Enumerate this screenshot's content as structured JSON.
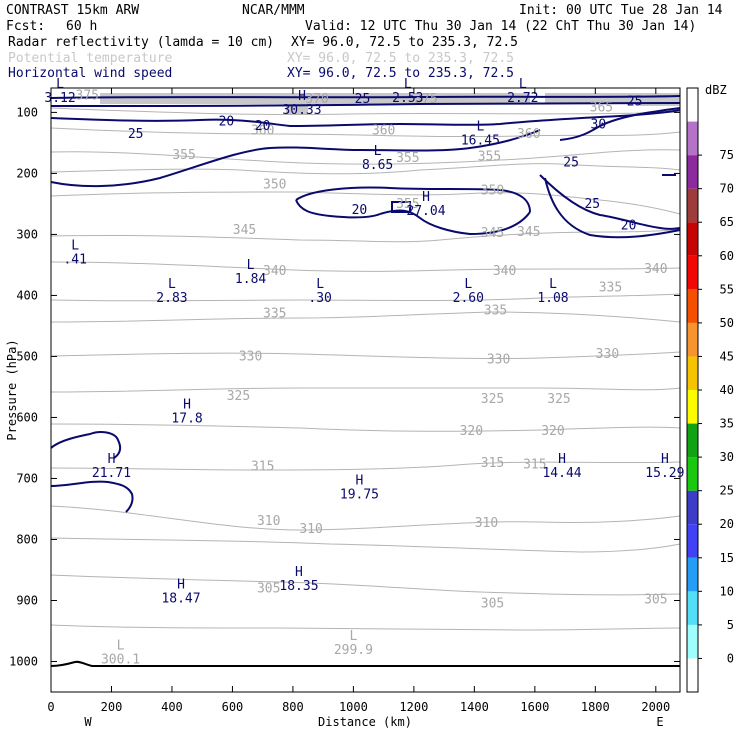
{
  "header": {
    "model": "CONTRAST 15km ARW",
    "institution": "NCAR/MMM",
    "init": "Init: 00 UTC Tue 28 Jan 14",
    "fcst_label": "Fcst:",
    "fcst_value": "60 h",
    "valid": "Valid: 12 UTC Thu 30 Jan 14 (22 ChT Thu 30 Jan 14)",
    "fields": [
      {
        "name": "Radar reflectivity (lamda = 10 cm)",
        "xy": "XY=  96.0, 72.5 to 235.3, 72.5",
        "color": "#000000"
      },
      {
        "name": "Potential temperature",
        "xy": "XY=  96.0, 72.5 to 235.3, 72.5",
        "color": "#c8c8c8"
      },
      {
        "name": "Horizontal wind speed",
        "xy": "XY=  96.0, 72.5 to 235.3, 72.5",
        "color": "#0a0a6e"
      }
    ]
  },
  "chart_data": {
    "type": "contour-cross-section",
    "xlabel": "Distance (km)",
    "ylabel": "Pressure (hPa)",
    "x_ticks": [
      0,
      200,
      400,
      600,
      800,
      1000,
      1200,
      1400,
      1600,
      1800,
      2000
    ],
    "xlim": [
      0,
      2080
    ],
    "y_ticks": [
      100,
      200,
      300,
      400,
      500,
      600,
      700,
      800,
      900,
      1000
    ],
    "ylim": [
      1050,
      60
    ],
    "x_end_labels": {
      "left": "W",
      "right": "E"
    },
    "colorbar": {
      "unit": "dBZ",
      "levels": [
        "0",
        "5",
        "10",
        "15",
        "20",
        "25",
        "30",
        "35",
        "40",
        "45",
        "50",
        "55",
        "60",
        "65",
        "70",
        "75"
      ],
      "colors": [
        "#ffffff",
        "#9ffdfd",
        "#54ddf7",
        "#259df5",
        "#4141f5",
        "#3c3cc8",
        "#19c80f",
        "#11a311",
        "#fcfb00",
        "#f5c300",
        "#f7942f",
        "#f55000",
        "#f30606",
        "#c60404",
        "#9e3c3c",
        "#8b2b9e",
        "#b473c8",
        "#ffffff"
      ]
    },
    "theta_labels": [
      {
        "x": 120,
        "p": 72,
        "text": "375"
      },
      {
        "x": 880,
        "p": 78,
        "text": "370"
      },
      {
        "x": 1240,
        "p": 78,
        "text": "375"
      },
      {
        "x": 1820,
        "p": 92,
        "text": "365"
      },
      {
        "x": 700,
        "p": 130,
        "text": "360"
      },
      {
        "x": 1100,
        "p": 130,
        "text": "360"
      },
      {
        "x": 1580,
        "p": 135,
        "text": "360"
      },
      {
        "x": 440,
        "p": 170,
        "text": "355"
      },
      {
        "x": 1180,
        "p": 175,
        "text": "355"
      },
      {
        "x": 1450,
        "p": 172,
        "text": "355"
      },
      {
        "x": 740,
        "p": 218,
        "text": "350"
      },
      {
        "x": 1460,
        "p": 228,
        "text": "350"
      },
      {
        "x": 1180,
        "p": 250,
        "text": "355"
      },
      {
        "x": 640,
        "p": 293,
        "text": "345"
      },
      {
        "x": 1460,
        "p": 298,
        "text": "345"
      },
      {
        "x": 1580,
        "p": 296,
        "text": "345"
      },
      {
        "x": 740,
        "p": 360,
        "text": "340"
      },
      {
        "x": 1500,
        "p": 360,
        "text": "340"
      },
      {
        "x": 2000,
        "p": 357,
        "text": "340"
      },
      {
        "x": 1850,
        "p": 387,
        "text": "335"
      },
      {
        "x": 740,
        "p": 430,
        "text": "335"
      },
      {
        "x": 1470,
        "p": 425,
        "text": "335"
      },
      {
        "x": 660,
        "p": 500,
        "text": "330"
      },
      {
        "x": 1480,
        "p": 505,
        "text": "330"
      },
      {
        "x": 1840,
        "p": 496,
        "text": "330"
      },
      {
        "x": 620,
        "p": 565,
        "text": "325"
      },
      {
        "x": 1460,
        "p": 570,
        "text": "325"
      },
      {
        "x": 1680,
        "p": 570,
        "text": "325"
      },
      {
        "x": 1390,
        "p": 622,
        "text": "320"
      },
      {
        "x": 1660,
        "p": 622,
        "text": "320"
      },
      {
        "x": 700,
        "p": 680,
        "text": "315"
      },
      {
        "x": 1460,
        "p": 675,
        "text": "315"
      },
      {
        "x": 1600,
        "p": 677,
        "text": "315"
      },
      {
        "x": 720,
        "p": 770,
        "text": "310"
      },
      {
        "x": 860,
        "p": 783,
        "text": "310"
      },
      {
        "x": 1440,
        "p": 773,
        "text": "310"
      },
      {
        "x": 720,
        "p": 880,
        "text": "305"
      },
      {
        "x": 1460,
        "p": 905,
        "text": "305"
      },
      {
        "x": 2000,
        "p": 898,
        "text": "305"
      }
    ],
    "wind_labels": [
      {
        "x": 1030,
        "p": 78,
        "text": "25"
      },
      {
        "x": 1930,
        "p": 82,
        "text": "25"
      },
      {
        "x": 280,
        "p": 135,
        "text": "25"
      },
      {
        "x": 580,
        "p": 115,
        "text": "20"
      },
      {
        "x": 700,
        "p": 122,
        "text": "20"
      },
      {
        "x": 1810,
        "p": 120,
        "text": "30"
      },
      {
        "x": 1720,
        "p": 182,
        "text": "25"
      },
      {
        "x": 1790,
        "p": 250,
        "text": "25"
      },
      {
        "x": 1910,
        "p": 285,
        "text": "20"
      },
      {
        "x": 1020,
        "p": 260,
        "text": "20"
      }
    ],
    "extrema": [
      {
        "x": 30,
        "p": 60,
        "type": "L",
        "value": "3.12",
        "color": "#0a0a6e"
      },
      {
        "x": 830,
        "p": 80,
        "type": "H",
        "value": "30.33",
        "color": "#0a0a6e"
      },
      {
        "x": 1180,
        "p": 60,
        "type": "L",
        "value": "2.53",
        "color": "#0a0a6e"
      },
      {
        "x": 1560,
        "p": 60,
        "type": "L",
        "value": "2.72",
        "color": "#0a0a6e"
      },
      {
        "x": 1420,
        "p": 130,
        "type": "L",
        "value": "16.45",
        "color": "#0a0a6e"
      },
      {
        "x": 1080,
        "p": 170,
        "type": "L",
        "value": "8.65",
        "color": "#0a0a6e"
      },
      {
        "x": 1240,
        "p": 245,
        "type": "H",
        "value": "27.04",
        "color": "#0a0a6e"
      },
      {
        "x": 80,
        "p": 325,
        "type": "L",
        "value": ".41",
        "color": "#0a0a6e"
      },
      {
        "x": 660,
        "p": 357,
        "type": "L",
        "value": "1.84",
        "color": "#0a0a6e"
      },
      {
        "x": 400,
        "p": 388,
        "type": "L",
        "value": "2.83",
        "color": "#0a0a6e"
      },
      {
        "x": 890,
        "p": 388,
        "type": "L",
        "value": ".30",
        "color": "#0a0a6e"
      },
      {
        "x": 1380,
        "p": 388,
        "type": "L",
        "value": "2.60",
        "color": "#0a0a6e"
      },
      {
        "x": 1660,
        "p": 388,
        "type": "L",
        "value": "1.08",
        "color": "#0a0a6e"
      },
      {
        "x": 450,
        "p": 585,
        "type": "H",
        "value": "17.8",
        "color": "#0a0a6e"
      },
      {
        "x": 200,
        "p": 675,
        "type": "H",
        "value": "21.71",
        "color": "#0a0a6e"
      },
      {
        "x": 1690,
        "p": 675,
        "type": "H",
        "value": "14.44",
        "color": "#0a0a6e"
      },
      {
        "x": 2030,
        "p": 675,
        "type": "H",
        "value": "15.29",
        "color": "#0a0a6e"
      },
      {
        "x": 1020,
        "p": 710,
        "type": "H",
        "value": "19.75",
        "color": "#0a0a6e"
      },
      {
        "x": 820,
        "p": 860,
        "type": "H",
        "value": "18.35",
        "color": "#0a0a6e"
      },
      {
        "x": 430,
        "p": 880,
        "type": "H",
        "value": "18.47",
        "color": "#0a0a6e"
      },
      {
        "x": 230,
        "p": 980,
        "type": "L",
        "value": "300.1",
        "color": "#a8a8a8"
      },
      {
        "x": 1000,
        "p": 965,
        "type": "L",
        "value": "299.9",
        "color": "#a8a8a8"
      }
    ]
  }
}
